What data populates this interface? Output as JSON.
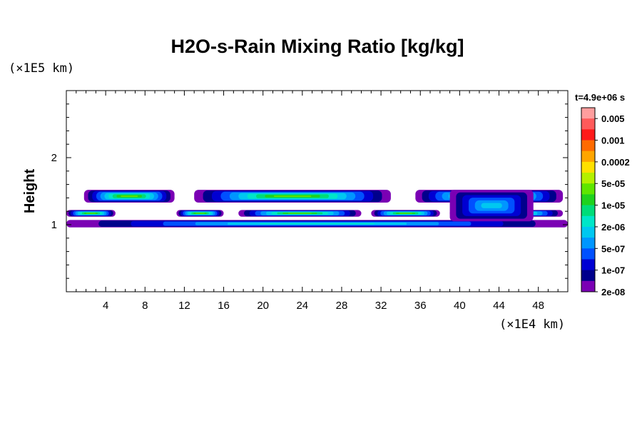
{
  "chart_data": {
    "type": "heatmap",
    "title": "H2O-s-Rain Mixing Ratio [kg/kg]",
    "ylabel": "Height",
    "xlabel": "",
    "y_scale_label": "(×1E5 km)",
    "x_scale_label": "(×1E4 km)",
    "time_label": "t=4.9e+06 s",
    "xlim": [
      0,
      51
    ],
    "ylim": [
      0,
      3
    ],
    "x_ticks": [
      "4",
      "8",
      "12",
      "16",
      "20",
      "24",
      "28",
      "32",
      "36",
      "40",
      "44",
      "48"
    ],
    "x_tick_values": [
      4,
      8,
      12,
      16,
      20,
      24,
      28,
      32,
      36,
      40,
      44,
      48
    ],
    "y_ticks": [
      "1",
      "2"
    ],
    "y_tick_values": [
      1,
      2
    ],
    "colorbar": {
      "labels": [
        "0.005",
        "0.001",
        "0.0002",
        "5e-05",
        "1e-05",
        "2e-06",
        "5e-07",
        "1e-07",
        "2e-08"
      ],
      "colors": [
        "#ff9e9e",
        "#ff5a5a",
        "#ff1a1a",
        "#ff6a00",
        "#ffa500",
        "#ffe000",
        "#b4f000",
        "#5ee600",
        "#1ed21e",
        "#00dc78",
        "#00e6c8",
        "#00c8f0",
        "#0096ff",
        "#0050ff",
        "#0000d2",
        "#00008c",
        "#7a00b4"
      ]
    },
    "bands": [
      {
        "name": "upper-layer",
        "segments": [
          [
            1.8,
            11.0
          ],
          [
            13.0,
            33.0
          ],
          [
            35.5,
            50.5
          ]
        ],
        "y_top": 1.52,
        "y_bottom": 1.33,
        "peak_level": 9
      },
      {
        "name": "middle-layer",
        "segments": [
          [
            0.0,
            5.0
          ],
          [
            11.2,
            16.0
          ],
          [
            17.5,
            30.0
          ],
          [
            31.0,
            38.0
          ],
          [
            39.0,
            50.5
          ]
        ],
        "y_top": 1.22,
        "y_bottom": 1.12,
        "peak_level": 9
      },
      {
        "name": "lower-layer",
        "segments": [
          [
            0.0,
            51.0
          ]
        ],
        "y_top": 1.07,
        "y_bottom": 0.96,
        "peak_level": 6
      },
      {
        "name": "convective-core",
        "segments": [
          [
            39.0,
            47.5
          ]
        ],
        "y_top": 1.52,
        "y_bottom": 1.05,
        "peak_level": 5
      }
    ]
  }
}
